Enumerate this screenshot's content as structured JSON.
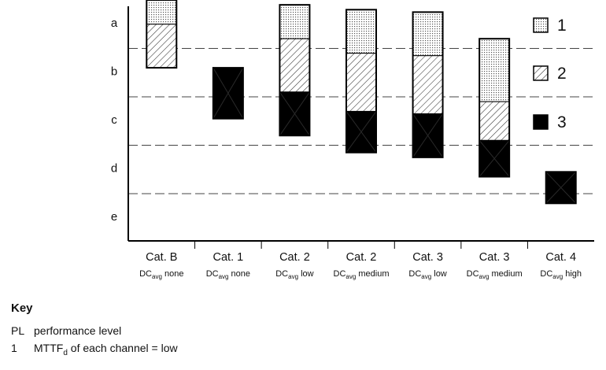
{
  "chart_data": {
    "type": "bar",
    "subtype": "stacked-range",
    "y_axis": {
      "levels": [
        "a",
        "b",
        "c",
        "d",
        "e"
      ],
      "direction": "top-to-bottom",
      "level_boundaries_dashed": true
    },
    "categories": [
      {
        "cat": "Cat. B",
        "dc": "DC",
        "dc_sub": "avg",
        "dc_level": "none"
      },
      {
        "cat": "Cat. 1",
        "dc": "DC",
        "dc_sub": "avg",
        "dc_level": "none"
      },
      {
        "cat": "Cat. 2",
        "dc": "DC",
        "dc_sub": "avg",
        "dc_level": "low"
      },
      {
        "cat": "Cat. 2",
        "dc": "DC",
        "dc_sub": "avg",
        "dc_level": "medium"
      },
      {
        "cat": "Cat. 3",
        "dc": "DC",
        "dc_sub": "avg",
        "dc_level": "low"
      },
      {
        "cat": "Cat. 3",
        "dc": "DC",
        "dc_sub": "avg",
        "dc_level": "medium"
      },
      {
        "cat": "Cat. 4",
        "dc": "DC",
        "dc_sub": "avg",
        "dc_level": "high"
      }
    ],
    "series": [
      {
        "name": "1",
        "pattern": "dotted",
        "ranges": [
          [
            0.0,
            0.5
          ],
          null,
          [
            0.1,
            0.8
          ],
          [
            0.2,
            1.1
          ],
          [
            0.25,
            1.15
          ],
          [
            0.8,
            2.1
          ],
          null
        ]
      },
      {
        "name": "2",
        "pattern": "hatched",
        "ranges": [
          [
            0.5,
            1.4
          ],
          null,
          [
            0.8,
            1.9
          ],
          [
            1.1,
            2.3
          ],
          [
            1.15,
            2.35
          ],
          [
            2.1,
            2.9
          ],
          null
        ]
      },
      {
        "name": "3",
        "pattern": "solid-black",
        "ranges": [
          null,
          [
            1.4,
            2.45
          ],
          [
            1.9,
            2.8
          ],
          [
            2.3,
            3.15
          ],
          [
            2.35,
            3.25
          ],
          [
            2.9,
            3.65
          ],
          [
            3.55,
            4.2
          ]
        ]
      }
    ],
    "legend": {
      "items": [
        "1",
        "2",
        "3"
      ],
      "placement": "top-right"
    }
  },
  "key": {
    "title": "Key",
    "rows": [
      {
        "code": "PL",
        "text": "performance level"
      },
      {
        "code": "1",
        "text_before": "MTTF",
        "text_sub": "d",
        "text_after": " of each channel = low"
      }
    ]
  }
}
